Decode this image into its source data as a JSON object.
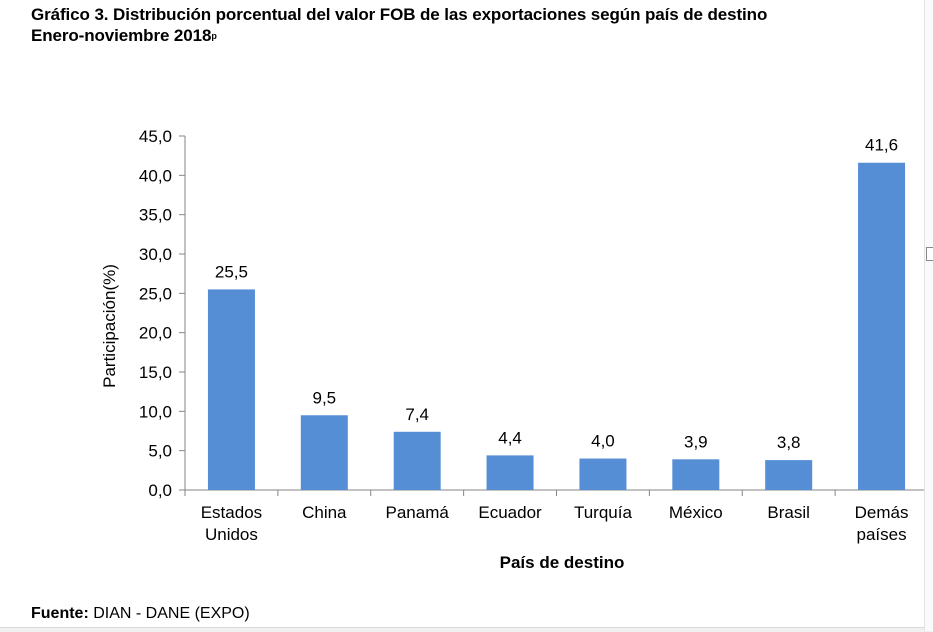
{
  "header": {
    "title_line1": "Gráfico 3. Distribución porcentual del valor FOB de las exportaciones según país de destino",
    "title_line2": "Enero-noviembre 2018",
    "title_superscript": "p"
  },
  "footer": {
    "source_label": "Fuente:",
    "source_value": "DIAN - DANE (EXPO)"
  },
  "colors": {
    "bar": "#558ED5",
    "axis": "#868686"
  },
  "chart_data": {
    "type": "bar",
    "title": "Distribución porcentual del valor FOB de las exportaciones según país de destino",
    "subtitle": "Enero-noviembre 2018p",
    "xlabel": "País de destino",
    "ylabel": "Participación(%)",
    "categories": [
      [
        "Estados",
        "Unidos"
      ],
      [
        "China"
      ],
      [
        "Panamá"
      ],
      [
        "Ecuador"
      ],
      [
        "Turquía"
      ],
      [
        "México"
      ],
      [
        "Brasil"
      ],
      [
        "Demás",
        "países"
      ]
    ],
    "values": [
      25.5,
      9.5,
      7.4,
      4.4,
      4.0,
      3.9,
      3.8,
      41.6
    ],
    "value_labels": [
      "25,5",
      "9,5",
      "7,4",
      "4,4",
      "4,0",
      "3,9",
      "3,8",
      "41,6"
    ],
    "ylim": [
      0,
      45
    ],
    "yticks": [
      0,
      5,
      10,
      15,
      20,
      25,
      30,
      35,
      40,
      45
    ],
    "ytick_labels": [
      "0,0",
      "5,0",
      "10,0",
      "15,0",
      "20,0",
      "25,0",
      "30,0",
      "35,0",
      "40,0",
      "45,0"
    ],
    "grid": false,
    "legend": "none"
  }
}
